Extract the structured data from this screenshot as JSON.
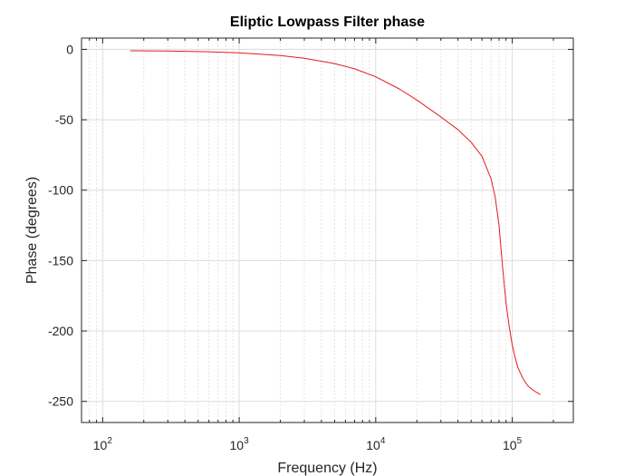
{
  "chart_data": {
    "type": "line",
    "title": "Eliptic Lowpass Filter phase",
    "xlabel": "Frequency (Hz)",
    "ylabel": "Phase (degrees)",
    "xscale": "log",
    "xlim": [
      70,
      280000
    ],
    "ylim": [
      -265,
      8
    ],
    "grid": true,
    "legend": "none",
    "x_ticks": [
      {
        "value": 100,
        "base": "10",
        "exp": "2"
      },
      {
        "value": 1000,
        "base": "10",
        "exp": "3"
      },
      {
        "value": 10000,
        "base": "10",
        "exp": "4"
      },
      {
        "value": 100000,
        "base": "10",
        "exp": "5"
      }
    ],
    "y_ticks": [
      {
        "value": 0,
        "label": "0"
      },
      {
        "value": -50,
        "label": "-50"
      },
      {
        "value": -100,
        "label": "-100"
      },
      {
        "value": -150,
        "label": "-150"
      },
      {
        "value": -200,
        "label": "-200"
      },
      {
        "value": -250,
        "label": "-250"
      }
    ],
    "series": [
      {
        "color": "#e41a1c",
        "x": [
          160,
          300,
          600,
          1000,
          2000,
          3000,
          5000,
          7000,
          10000,
          15000,
          20000,
          30000,
          40000,
          50000,
          60000,
          70000,
          75000,
          80000,
          85000,
          90000,
          95000,
          100000,
          105000,
          110000,
          120000,
          130000,
          140000,
          150000,
          160000
        ],
        "y": [
          -1,
          -1.2,
          -1.7,
          -2.5,
          -4.4,
          -6.3,
          -10.1,
          -13.8,
          -19.5,
          -28.3,
          -36,
          -48,
          -57,
          -66,
          -76,
          -92,
          -105,
          -125,
          -155,
          -180,
          -197,
          -210,
          -219,
          -226,
          -234,
          -239,
          -241.5,
          -243.5,
          -245
        ]
      }
    ]
  }
}
